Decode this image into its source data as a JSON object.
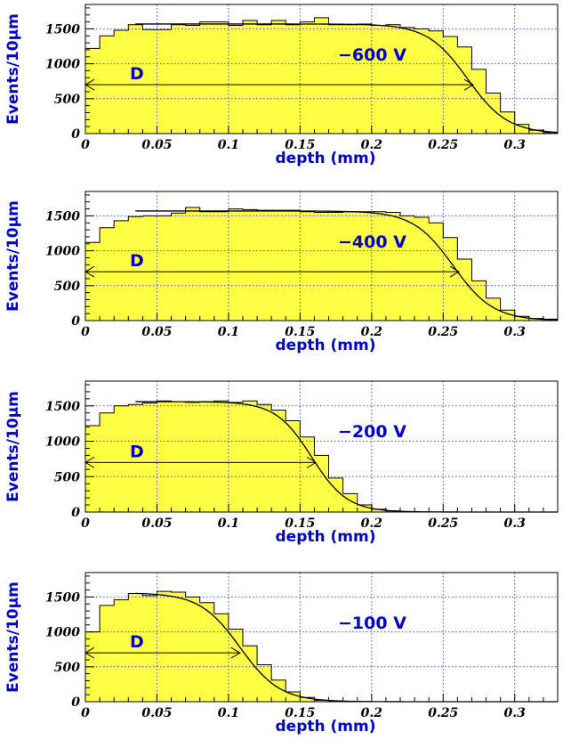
{
  "chart_data": [
    {
      "type": "histogram",
      "annotation": "−600 V",
      "d_label": "D",
      "xlabel": "depth (mm)",
      "ylabel": "Events/10μm",
      "xlim": [
        0,
        0.33
      ],
      "ylim": [
        0,
        1850
      ],
      "x_ticks": [
        "0",
        "0.05",
        "0.1",
        "0.15",
        "0.2",
        "0.25",
        "0.3"
      ],
      "y_ticks": [
        "0",
        "500",
        "1000",
        "1500"
      ],
      "grid": true,
      "bin_width": 0.01,
      "values": [
        1220,
        1400,
        1480,
        1560,
        1490,
        1490,
        1560,
        1550,
        1600,
        1600,
        1550,
        1620,
        1560,
        1620,
        1560,
        1600,
        1660,
        1560,
        1560,
        1570,
        1550,
        1560,
        1520,
        1500,
        1470,
        1390,
        1240,
        920,
        580,
        310,
        130,
        50,
        15
      ],
      "fit": {
        "plateau": 1570,
        "edge": 0.267,
        "width": 0.014
      },
      "d_arrow": {
        "x0": 0.0,
        "x1": 0.271,
        "y": 700
      }
    },
    {
      "type": "histogram",
      "annotation": "−400 V",
      "d_label": "D",
      "xlabel": "depth (mm)",
      "ylabel": "Events/10μm",
      "xlim": [
        0,
        0.33
      ],
      "ylim": [
        0,
        1850
      ],
      "x_ticks": [
        "0",
        "0.05",
        "0.1",
        "0.15",
        "0.2",
        "0.25",
        "0.3"
      ],
      "y_ticks": [
        "0",
        "500",
        "1000",
        "1500"
      ],
      "grid": true,
      "bin_width": 0.01,
      "values": [
        1120,
        1330,
        1430,
        1490,
        1500,
        1500,
        1540,
        1620,
        1560,
        1560,
        1600,
        1590,
        1580,
        1580,
        1580,
        1560,
        1550,
        1550,
        1560,
        1560,
        1560,
        1550,
        1500,
        1480,
        1400,
        1190,
        880,
        570,
        320,
        150,
        60,
        30,
        20
      ],
      "fit": {
        "plateau": 1570,
        "edge": 0.257,
        "width": 0.014
      },
      "d_arrow": {
        "x0": 0.0,
        "x1": 0.261,
        "y": 700
      }
    },
    {
      "type": "histogram",
      "annotation": "−200 V",
      "d_label": "D",
      "xlabel": "depth (mm)",
      "ylabel": "Events/10μm",
      "xlim": [
        0,
        0.33
      ],
      "ylim": [
        0,
        1850
      ],
      "x_ticks": [
        "0",
        "0.05",
        "0.1",
        "0.15",
        "0.2",
        "0.25",
        "0.3"
      ],
      "y_ticks": [
        "0",
        "500",
        "1000",
        "1500"
      ],
      "grid": true,
      "bin_width": 0.01,
      "values": [
        1220,
        1400,
        1500,
        1520,
        1540,
        1570,
        1560,
        1550,
        1560,
        1570,
        1550,
        1570,
        1520,
        1440,
        1290,
        1060,
        800,
        480,
        260,
        100,
        40,
        15,
        5
      ],
      "fit": {
        "plateau": 1560,
        "edge": 0.158,
        "width": 0.0125
      },
      "d_arrow": {
        "x0": 0.0,
        "x1": 0.161,
        "y": 700
      }
    },
    {
      "type": "histogram",
      "annotation": "−100 V",
      "d_label": "D",
      "xlabel": "depth (mm)",
      "ylabel": "Events/10μm",
      "xlim": [
        0,
        0.33
      ],
      "ylim": [
        0,
        1850
      ],
      "x_ticks": [
        "0",
        "0.05",
        "0.1",
        "0.15",
        "0.2",
        "0.25",
        "0.3"
      ],
      "y_ticks": [
        "0",
        "500",
        "1000",
        "1500"
      ],
      "grid": true,
      "bin_width": 0.01,
      "values": [
        1000,
        1380,
        1460,
        1550,
        1520,
        1580,
        1570,
        1500,
        1420,
        1260,
        1040,
        800,
        530,
        310,
        140,
        60,
        20,
        8
      ],
      "fit": {
        "plateau": 1560,
        "edge": 0.108,
        "width": 0.014
      },
      "d_arrow": {
        "x0": 0.0,
        "x1": 0.108,
        "y": 700
      }
    }
  ]
}
